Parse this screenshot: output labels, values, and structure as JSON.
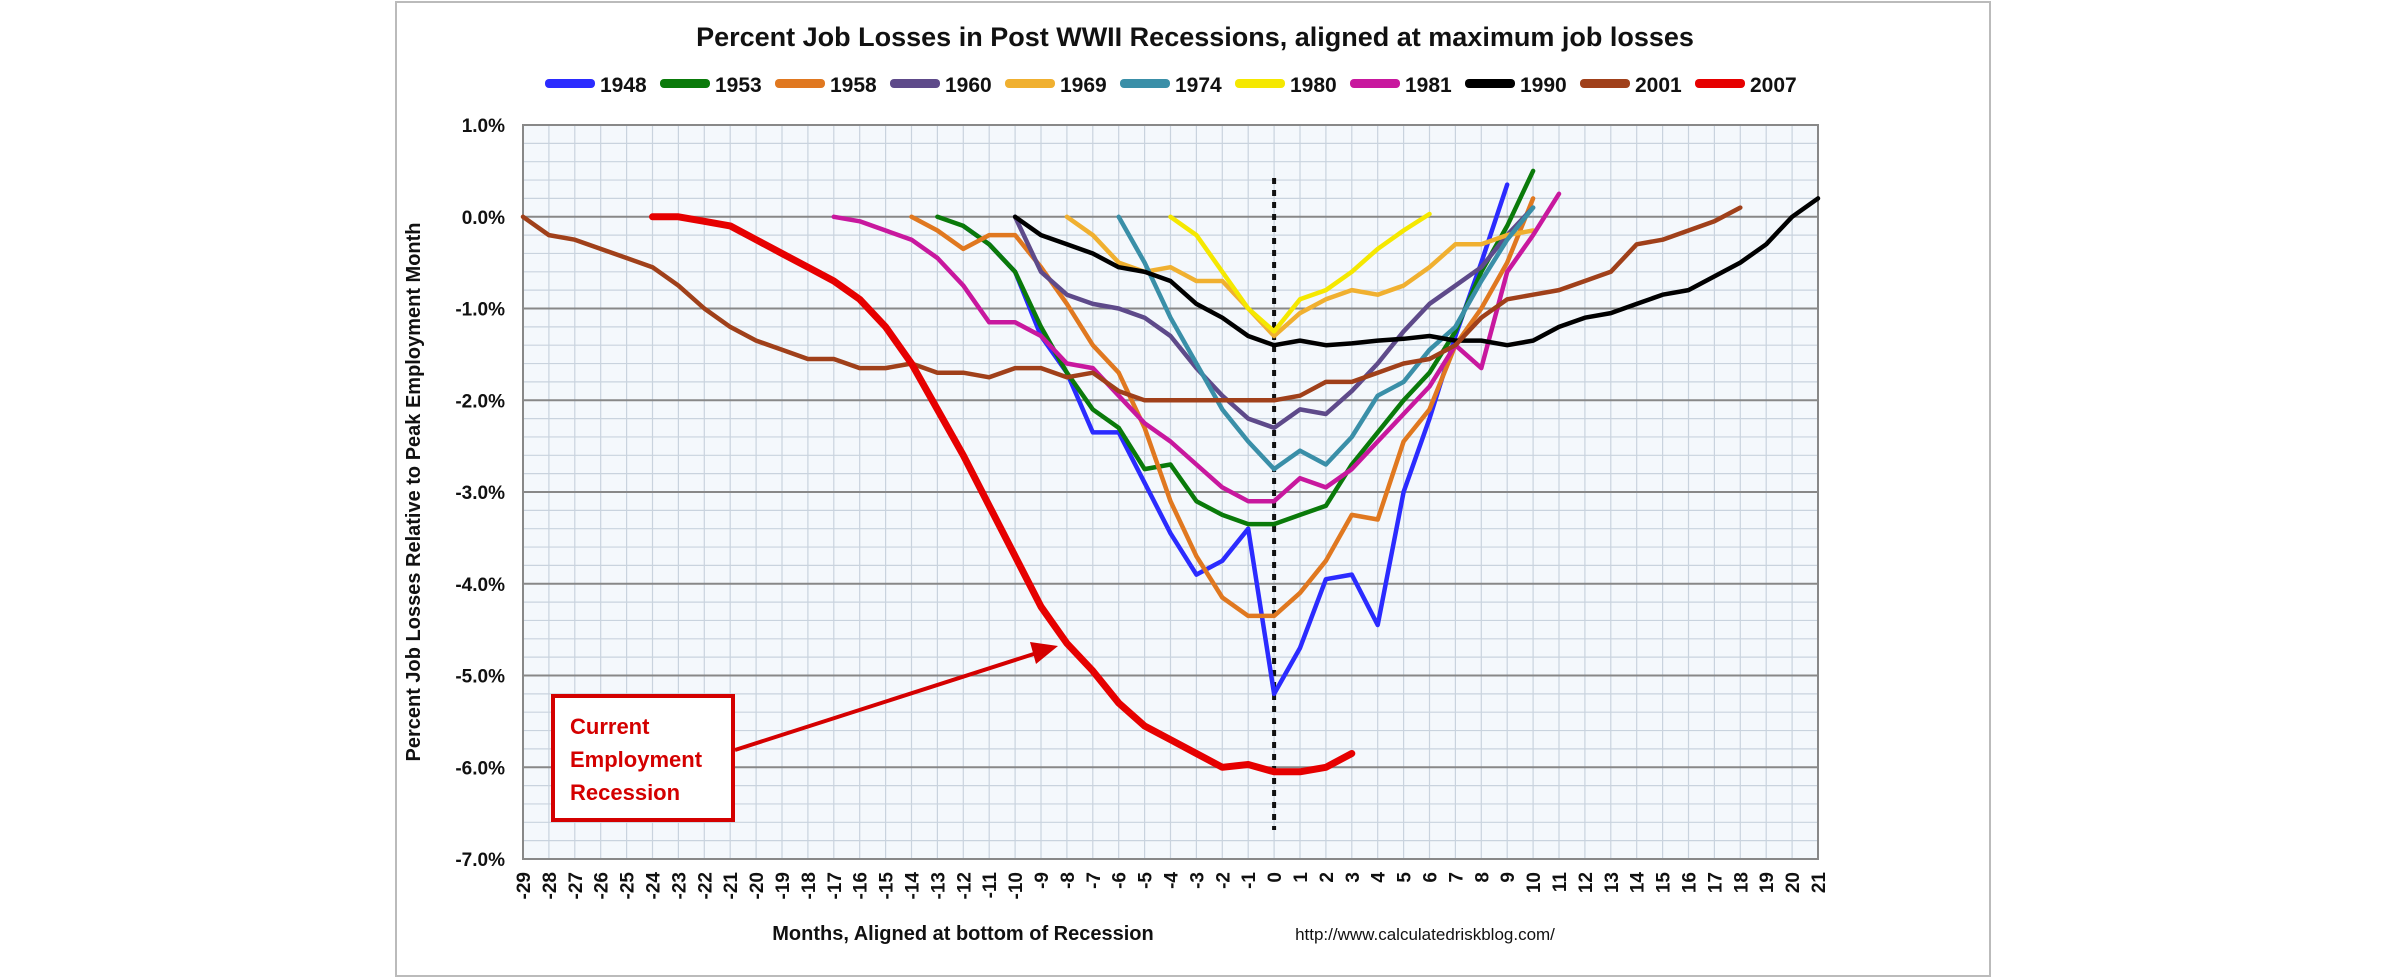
{
  "chart_data": {
    "type": "line",
    "title": "Percent Job Losses in Post WWII Recessions, aligned at maximum job losses",
    "xlabel": "Months, Aligned at bottom of Recession",
    "ylabel": "Percent Job Losses Relative to Peak Employment Month",
    "source": "http://www.calculatedriskblog.com/",
    "xlim": [
      -29,
      21
    ],
    "ylim": [
      -7.0,
      1.0
    ],
    "yticks": [
      "1.0%",
      "0.0%",
      "-1.0%",
      "-2.0%",
      "-3.0%",
      "-4.0%",
      "-5.0%",
      "-6.0%",
      "-7.0%"
    ],
    "grid": true,
    "legend_position": "top",
    "reference_line_x": 0,
    "annotation": {
      "text": [
        "Current",
        "Employment",
        "Recession"
      ],
      "points_to_series": "2007",
      "color": "#d40000"
    },
    "series": [
      {
        "name": "1948",
        "color": "#2b2bff",
        "start": -12,
        "values": [
          -0.1,
          -0.3,
          -0.6,
          -1.3,
          -1.7,
          -2.35,
          -2.35,
          -2.9,
          -3.45,
          -3.9,
          -3.75,
          -3.4,
          -5.2,
          -4.7,
          -3.95,
          -3.9,
          -4.45,
          -3.0,
          -2.2,
          -1.3,
          -0.5,
          0.35
        ]
      },
      {
        "name": "1953",
        "color": "#0a7a0a",
        "start": -13,
        "values": [
          0,
          -0.1,
          -0.3,
          -0.6,
          -1.2,
          -1.7,
          -2.1,
          -2.3,
          -2.75,
          -2.7,
          -3.1,
          -3.25,
          -3.35,
          -3.35,
          -3.25,
          -3.15,
          -2.7,
          -2.35,
          -2.0,
          -1.7,
          -1.25,
          -0.6,
          -0.1,
          0.5
        ]
      },
      {
        "name": "1958",
        "color": "#e07820",
        "start": -14,
        "values": [
          0,
          -0.15,
          -0.35,
          -0.2,
          -0.2,
          -0.55,
          -0.95,
          -1.4,
          -1.7,
          -2.3,
          -3.1,
          -3.7,
          -4.15,
          -4.35,
          -4.35,
          -4.1,
          -3.75,
          -3.25,
          -3.3,
          -2.45,
          -2.1,
          -1.4,
          -1.0,
          -0.5,
          0.2
        ]
      },
      {
        "name": "1960",
        "color": "#5e4a8a",
        "start": -10,
        "values": [
          0,
          -0.6,
          -0.85,
          -0.95,
          -1.0,
          -1.1,
          -1.3,
          -1.65,
          -1.95,
          -2.2,
          -2.3,
          -2.1,
          -2.15,
          -1.9,
          -1.6,
          -1.25,
          -0.95,
          -0.75,
          -0.55,
          -0.2,
          0.1
        ]
      },
      {
        "name": "1969",
        "color": "#f0b030",
        "start": -8,
        "values": [
          0,
          -0.2,
          -0.5,
          -0.6,
          -0.55,
          -0.7,
          -0.7,
          -1.0,
          -1.3,
          -1.05,
          -0.9,
          -0.8,
          -0.85,
          -0.75,
          -0.55,
          -0.3,
          -0.3,
          -0.2,
          -0.15
        ]
      },
      {
        "name": "1974",
        "color": "#3a8fa8",
        "start": -6,
        "values": [
          0,
          -0.5,
          -1.1,
          -1.6,
          -2.1,
          -2.45,
          -2.75,
          -2.55,
          -2.7,
          -2.4,
          -1.95,
          -1.8,
          -1.45,
          -1.2,
          -0.7,
          -0.25,
          0.1
        ]
      },
      {
        "name": "1980",
        "color": "#f5e800",
        "start": -4,
        "values": [
          0,
          -0.2,
          -0.6,
          -1.0,
          -1.25,
          -0.9,
          -0.8,
          -0.6,
          -0.35,
          -0.15,
          0.03
        ]
      },
      {
        "name": "1981",
        "color": "#c8189e",
        "start": -17,
        "values": [
          0,
          -0.05,
          -0.15,
          -0.25,
          -0.45,
          -0.75,
          -1.15,
          -1.15,
          -1.3,
          -1.6,
          -1.65,
          -1.95,
          -2.25,
          -2.45,
          -2.7,
          -2.95,
          -3.1,
          -3.1,
          -2.85,
          -2.95,
          -2.75,
          -2.45,
          -2.15,
          -1.85,
          -1.4,
          -1.65,
          -0.6,
          -0.2,
          0.25
        ]
      },
      {
        "name": "1990",
        "color": "#000000",
        "start": -10,
        "values": [
          0,
          -0.2,
          -0.3,
          -0.4,
          -0.55,
          -0.6,
          -0.7,
          -0.95,
          -1.1,
          -1.3,
          -1.4,
          -1.35,
          -1.4,
          -1.38,
          -1.35,
          -1.33,
          -1.3,
          -1.35,
          -1.35,
          -1.4,
          -1.35,
          -1.2,
          -1.1,
          -1.05,
          -0.95,
          -0.85,
          -0.8,
          -0.65,
          -0.5,
          -0.3,
          0.0,
          0.2
        ]
      },
      {
        "name": "2001",
        "color": "#a0401a",
        "start": -29,
        "values": [
          0,
          -0.2,
          -0.25,
          -0.35,
          -0.45,
          -0.55,
          -0.75,
          -1.0,
          -1.2,
          -1.35,
          -1.45,
          -1.55,
          -1.55,
          -1.65,
          -1.65,
          -1.6,
          -1.7,
          -1.7,
          -1.75,
          -1.65,
          -1.65,
          -1.75,
          -1.7,
          -1.9,
          -2.0,
          -2.0,
          -2.0,
          -2.0,
          -2.0,
          -2.0,
          -1.95,
          -1.8,
          -1.8,
          -1.7,
          -1.6,
          -1.55,
          -1.4,
          -1.1,
          -0.9,
          -0.85,
          -0.8,
          -0.7,
          -0.6,
          -0.3,
          -0.25,
          -0.15,
          -0.05,
          0.1
        ]
      },
      {
        "name": "2007",
        "color": "#e60000",
        "start": -24,
        "values": [
          0,
          0,
          -0.05,
          -0.1,
          -0.25,
          -0.4,
          -0.55,
          -0.7,
          -0.9,
          -1.2,
          -1.6,
          -2.1,
          -2.6,
          -3.15,
          -3.7,
          -4.25,
          -4.65,
          -4.95,
          -5.3,
          -5.55,
          -5.7,
          -5.85,
          -6.0,
          -5.97,
          -6.05,
          -6.05,
          -6.0,
          -5.85
        ]
      }
    ]
  }
}
